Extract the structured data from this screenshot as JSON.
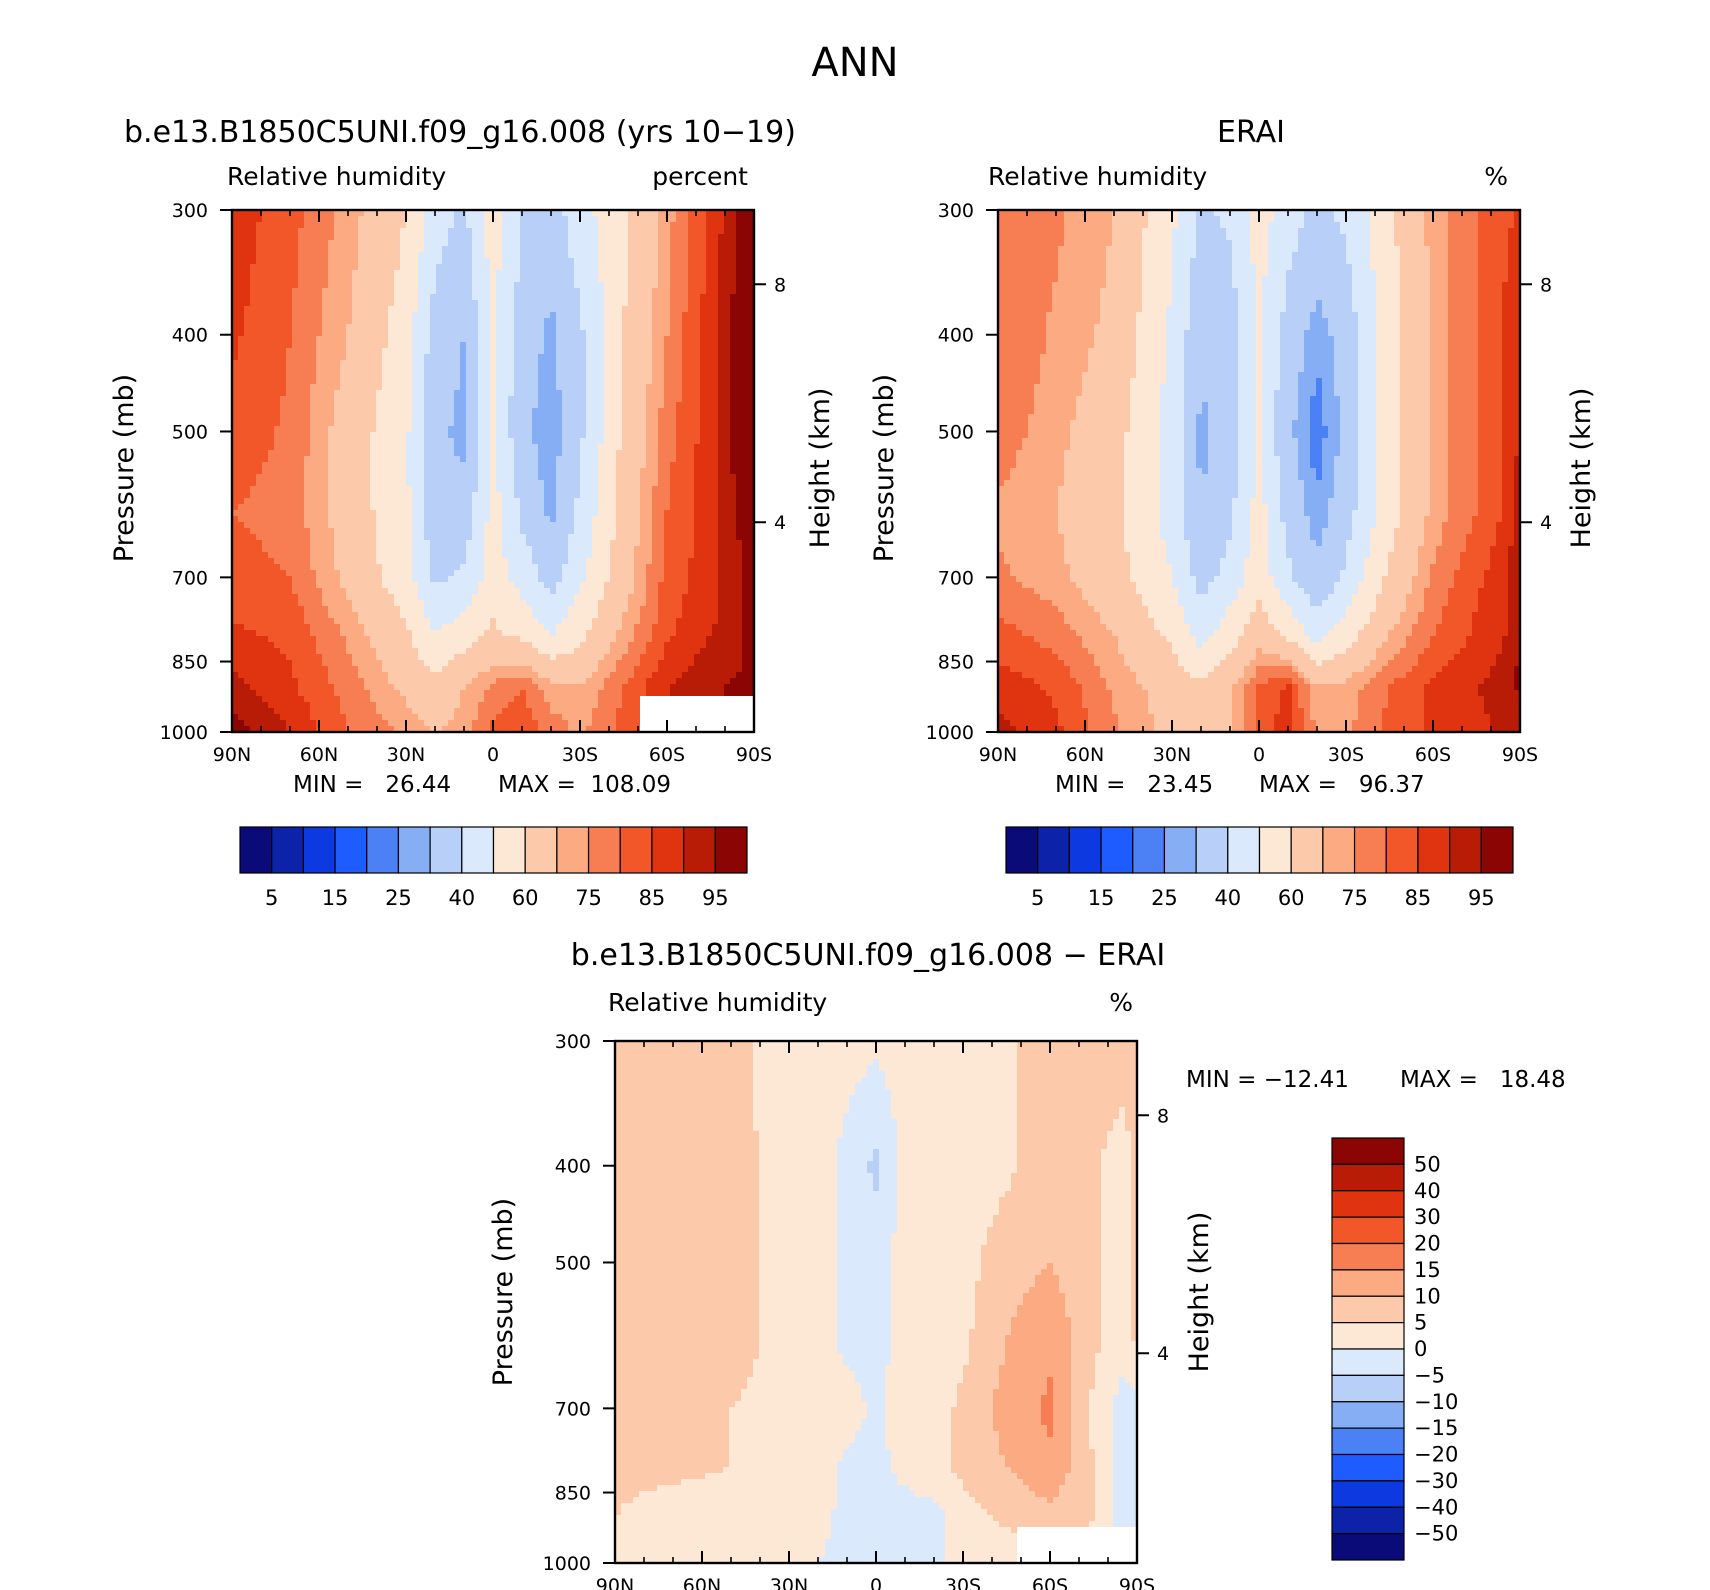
{
  "figure": {
    "title": "ANN"
  },
  "chart_data": [
    {
      "type": "heatmap",
      "title": "b.e13.B1850C5UNI.f09_g16.008 (yrs 10−19)",
      "variable": "Relative humidity",
      "units": "percent",
      "xlabel": "",
      "ylabel": "Pressure (mb)",
      "y2label": "Height (km)",
      "x_ticks": [
        "90N",
        "60N",
        "30N",
        "0",
        "30S",
        "60S",
        "90S"
      ],
      "x_values": [
        90,
        60,
        30,
        0,
        -30,
        -60,
        -90
      ],
      "y_ticks": [
        "300",
        "400",
        "500",
        "700",
        "850",
        "1000"
      ],
      "y_values": [
        300,
        400,
        500,
        700,
        850,
        1000
      ],
      "y2_ticks": [
        "8",
        "4"
      ],
      "y2_values": [
        8,
        4
      ],
      "ylim": [
        1000,
        300
      ],
      "min_label": "MIN =   26.44",
      "max_label": "MAX =  108.09",
      "min": 26.44,
      "max": 108.09,
      "colorbar": {
        "orientation": "horizontal",
        "labels": [
          "5",
          "15",
          "25",
          "40",
          "60",
          "75",
          "85",
          "95"
        ],
        "levels": [
          5,
          10,
          15,
          20,
          25,
          30,
          40,
          50,
          60,
          70,
          75,
          80,
          85,
          90,
          95
        ],
        "colors": [
          "#0a0a78",
          "#0c22a8",
          "#0c3ae0",
          "#1e5cff",
          "#4b81f5",
          "#86aef5",
          "#b8d0f8",
          "#daeafc",
          "#fde8d6",
          "#fcc9ab",
          "#fbaa82",
          "#f77e52",
          "#f2572a",
          "#e03410",
          "#b91c06",
          "#8c0505"
        ]
      },
      "note_lat": [
        90,
        70,
        50,
        30,
        20,
        10,
        0,
        -10,
        -20,
        -30,
        -45,
        -60,
        -75,
        -85,
        -90
      ],
      "profiles": {
        "300": [
          88,
          82,
          73,
          60,
          45,
          38,
          56,
          40,
          35,
          46,
          58,
          73,
          86,
          96,
          102
        ],
        "400": [
          86,
          80,
          70,
          55,
          35,
          30,
          50,
          35,
          28,
          38,
          60,
          75,
          88,
          98,
          104
        ],
        "500": [
          83,
          79,
          66,
          52,
          32,
          28,
          52,
          32,
          26,
          38,
          62,
          78,
          88,
          98,
          106
        ],
        "600": [
          80,
          78,
          66,
          52,
          33,
          33,
          54,
          38,
          28,
          42,
          64,
          80,
          88,
          96,
          108
        ],
        "700": [
          82,
          80,
          68,
          54,
          38,
          42,
          55,
          46,
          36,
          48,
          66,
          82,
          88,
          94,
          104
        ],
        "800": [
          86,
          84,
          74,
          62,
          50,
          56,
          62,
          58,
          50,
          58,
          72,
          84,
          90,
          92,
          100
        ],
        "900": [
          92,
          86,
          78,
          68,
          64,
          70,
          76,
          80,
          72,
          70,
          80,
          90,
          94,
          96,
          100
        ],
        "1000": [
          98,
          90,
          80,
          74,
          70,
          72,
          82,
          84,
          78,
          74,
          82,
          88,
          92,
          96,
          100
        ]
      },
      "mask": {
        "lat_from": -50,
        "lat_to": -90,
        "p_from": 920,
        "p_to": 1000
      }
    },
    {
      "type": "heatmap",
      "title": "ERAI",
      "variable": "Relative humidity",
      "units": "%",
      "xlabel": "",
      "ylabel": "Pressure (mb)",
      "y2label": "Height (km)",
      "x_ticks": [
        "90N",
        "60N",
        "30N",
        "0",
        "30S",
        "60S",
        "90S"
      ],
      "x_values": [
        90,
        60,
        30,
        0,
        -30,
        -60,
        -90
      ],
      "y_ticks": [
        "300",
        "400",
        "500",
        "700",
        "850",
        "1000"
      ],
      "y_values": [
        300,
        400,
        500,
        700,
        850,
        1000
      ],
      "y2_ticks": [
        "8",
        "4"
      ],
      "y2_values": [
        8,
        4
      ],
      "ylim": [
        1000,
        300
      ],
      "min_label": "MIN =   23.45",
      "max_label": "MAX =   96.37",
      "min": 23.45,
      "max": 96.37,
      "colorbar": {
        "orientation": "horizontal",
        "labels": [
          "5",
          "15",
          "25",
          "40",
          "60",
          "75",
          "85",
          "95"
        ],
        "levels": [
          5,
          10,
          15,
          20,
          25,
          30,
          40,
          50,
          60,
          70,
          75,
          80,
          85,
          90,
          95
        ],
        "colors": [
          "#0a0a78",
          "#0c22a8",
          "#0c3ae0",
          "#1e5cff",
          "#4b81f5",
          "#86aef5",
          "#b8d0f8",
          "#daeafc",
          "#fde8d6",
          "#fcc9ab",
          "#fbaa82",
          "#f77e52",
          "#f2572a",
          "#e03410",
          "#b91c06",
          "#8c0505"
        ]
      },
      "note_lat": [
        90,
        70,
        50,
        30,
        20,
        10,
        0,
        -10,
        -20,
        -30,
        -45,
        -60,
        -75,
        -85,
        -90
      ],
      "profiles": {
        "300": [
          78,
          76,
          70,
          52,
          38,
          42,
          55,
          44,
          38,
          42,
          58,
          72,
          80,
          84,
          86
        ],
        "400": [
          80,
          74,
          68,
          48,
          32,
          34,
          50,
          36,
          26,
          34,
          56,
          72,
          80,
          86,
          88
        ],
        "500": [
          78,
          72,
          64,
          46,
          28,
          34,
          50,
          32,
          22,
          32,
          56,
          72,
          80,
          86,
          90
        ],
        "600": [
          74,
          70,
          62,
          46,
          30,
          38,
          54,
          36,
          26,
          36,
          56,
          72,
          80,
          86,
          94
        ],
        "700": [
          76,
          72,
          64,
          50,
          36,
          44,
          56,
          42,
          32,
          42,
          62,
          76,
          84,
          88,
          96
        ],
        "800": [
          82,
          78,
          70,
          58,
          46,
          56,
          66,
          58,
          46,
          56,
          70,
          80,
          86,
          90,
          96
        ],
        "900": [
          88,
          84,
          74,
          66,
          62,
          68,
          80,
          86,
          70,
          72,
          80,
          86,
          90,
          92,
          96
        ],
        "1000": [
          92,
          86,
          76,
          68,
          64,
          68,
          82,
          88,
          74,
          74,
          82,
          86,
          88,
          92,
          94
        ]
      }
    },
    {
      "type": "heatmap",
      "title": "b.e13.B1850C5UNI.f09_g16.008 − ERAI",
      "variable": "Relative humidity",
      "units": "%",
      "xlabel": "",
      "ylabel": "Pressure (mb)",
      "y2label": "Height (km)",
      "x_ticks": [
        "90N",
        "60N",
        "30N",
        "0",
        "30S",
        "60S",
        "90S"
      ],
      "x_values": [
        90,
        60,
        30,
        0,
        -30,
        -60,
        -90
      ],
      "y_ticks": [
        "300",
        "400",
        "500",
        "700",
        "850",
        "1000"
      ],
      "y_values": [
        300,
        400,
        500,
        700,
        850,
        1000
      ],
      "y2_ticks": [
        "8",
        "4"
      ],
      "y2_values": [
        8,
        4
      ],
      "ylim": [
        1000,
        300
      ],
      "min_label": "MIN = −12.41",
      "max_label": "MAX =   18.48",
      "min": -12.41,
      "max": 18.48,
      "colorbar": {
        "orientation": "vertical",
        "labels": [
          "50",
          "40",
          "30",
          "20",
          "15",
          "10",
          "5",
          "0",
          "−5",
          "−10",
          "−15",
          "−20",
          "−30",
          "−40",
          "−50"
        ],
        "levels": [
          50,
          40,
          30,
          20,
          15,
          10,
          5,
          0,
          -5,
          -10,
          -15,
          -20,
          -30,
          -40,
          -50
        ],
        "colors": [
          "#8c0505",
          "#b91c06",
          "#e03410",
          "#f2572a",
          "#f77e52",
          "#fbaa82",
          "#fcc9ab",
          "#fde8d6",
          "#daeafc",
          "#b8d0f8",
          "#86aef5",
          "#4b81f5",
          "#1e5cff",
          "#0c3ae0",
          "#0c22a8",
          "#0a0a78"
        ]
      },
      "note_lat": [
        90,
        70,
        50,
        30,
        20,
        10,
        0,
        -10,
        -20,
        -30,
        -45,
        -60,
        -75,
        -85,
        -90
      ],
      "profiles": {
        "300": [
          10,
          6,
          6,
          3,
          3,
          2,
          1,
          2,
          2,
          2,
          3,
          10,
          8,
          8,
          10
        ],
        "400": [
          6,
          6,
          6,
          4,
          3,
          -2,
          -6,
          2,
          4,
          2,
          4,
          8,
          6,
          2,
          6
        ],
        "500": [
          6,
          6,
          6,
          4,
          2,
          -1,
          -2,
          2,
          3,
          3,
          8,
          10,
          6,
          2,
          6
        ],
        "600": [
          6,
          6,
          6,
          4,
          2,
          -1,
          -2,
          2,
          2,
          4,
          10,
          14,
          6,
          2,
          6
        ],
        "700": [
          6,
          6,
          5,
          4,
          2,
          2,
          -1,
          3,
          3,
          6,
          12,
          16,
          4,
          -2,
          -2
        ],
        "800": [
          6,
          6,
          5,
          4,
          2,
          -1,
          -2,
          2,
          4,
          6,
          10,
          14,
          5,
          -3,
          -4
        ],
        "900": [
          5,
          3,
          3,
          3,
          1,
          -1,
          -3,
          -3,
          -2,
          3,
          6,
          8,
          5,
          -2,
          -4
        ],
        "1000": [
          5,
          2,
          3,
          2,
          0,
          -1,
          -1,
          -2,
          -1,
          2,
          2,
          3,
          3,
          2,
          2
        ]
      },
      "mask": {
        "lat_from": -48,
        "lat_to": -90,
        "p_from": 920,
        "p_to": 1000
      }
    }
  ]
}
